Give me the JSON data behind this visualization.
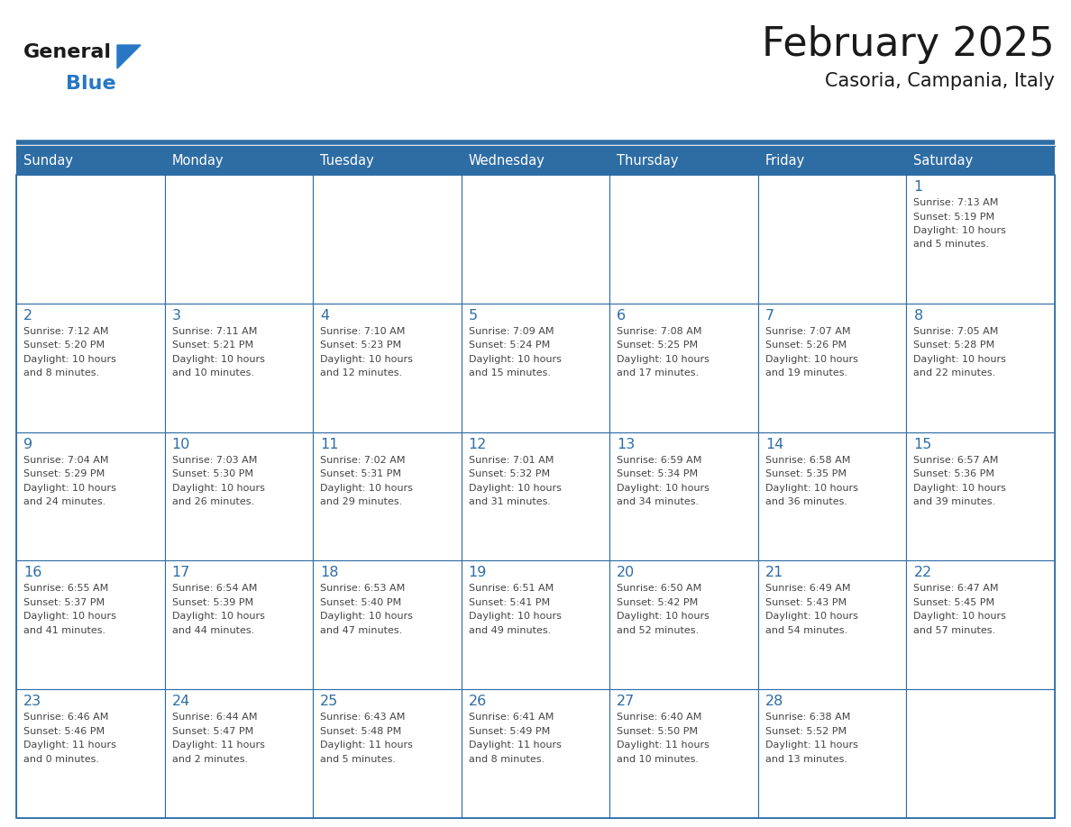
{
  "title": "February 2025",
  "subtitle": "Casoria, Campania, Italy",
  "header_bg": "#2E6DA4",
  "header_text": "#FFFFFF",
  "cell_bg": "#FFFFFF",
  "grid_line_color": "#2E6DA4",
  "text_color": "#444444",
  "day_number_color": "#2E6DA4",
  "days_of_week": [
    "Sunday",
    "Monday",
    "Tuesday",
    "Wednesday",
    "Thursday",
    "Friday",
    "Saturday"
  ],
  "calendar_data": [
    [
      null,
      null,
      null,
      null,
      null,
      null,
      {
        "day": "1",
        "sunrise": "7:13 AM",
        "sunset": "5:19 PM",
        "daylight": "10 hours",
        "daylight2": "and 5 minutes."
      }
    ],
    [
      {
        "day": "2",
        "sunrise": "7:12 AM",
        "sunset": "5:20 PM",
        "daylight": "10 hours",
        "daylight2": "and 8 minutes."
      },
      {
        "day": "3",
        "sunrise": "7:11 AM",
        "sunset": "5:21 PM",
        "daylight": "10 hours",
        "daylight2": "and 10 minutes."
      },
      {
        "day": "4",
        "sunrise": "7:10 AM",
        "sunset": "5:23 PM",
        "daylight": "10 hours",
        "daylight2": "and 12 minutes."
      },
      {
        "day": "5",
        "sunrise": "7:09 AM",
        "sunset": "5:24 PM",
        "daylight": "10 hours",
        "daylight2": "and 15 minutes."
      },
      {
        "day": "6",
        "sunrise": "7:08 AM",
        "sunset": "5:25 PM",
        "daylight": "10 hours",
        "daylight2": "and 17 minutes."
      },
      {
        "day": "7",
        "sunrise": "7:07 AM",
        "sunset": "5:26 PM",
        "daylight": "10 hours",
        "daylight2": "and 19 minutes."
      },
      {
        "day": "8",
        "sunrise": "7:05 AM",
        "sunset": "5:28 PM",
        "daylight": "10 hours",
        "daylight2": "and 22 minutes."
      }
    ],
    [
      {
        "day": "9",
        "sunrise": "7:04 AM",
        "sunset": "5:29 PM",
        "daylight": "10 hours",
        "daylight2": "and 24 minutes."
      },
      {
        "day": "10",
        "sunrise": "7:03 AM",
        "sunset": "5:30 PM",
        "daylight": "10 hours",
        "daylight2": "and 26 minutes."
      },
      {
        "day": "11",
        "sunrise": "7:02 AM",
        "sunset": "5:31 PM",
        "daylight": "10 hours",
        "daylight2": "and 29 minutes."
      },
      {
        "day": "12",
        "sunrise": "7:01 AM",
        "sunset": "5:32 PM",
        "daylight": "10 hours",
        "daylight2": "and 31 minutes."
      },
      {
        "day": "13",
        "sunrise": "6:59 AM",
        "sunset": "5:34 PM",
        "daylight": "10 hours",
        "daylight2": "and 34 minutes."
      },
      {
        "day": "14",
        "sunrise": "6:58 AM",
        "sunset": "5:35 PM",
        "daylight": "10 hours",
        "daylight2": "and 36 minutes."
      },
      {
        "day": "15",
        "sunrise": "6:57 AM",
        "sunset": "5:36 PM",
        "daylight": "10 hours",
        "daylight2": "and 39 minutes."
      }
    ],
    [
      {
        "day": "16",
        "sunrise": "6:55 AM",
        "sunset": "5:37 PM",
        "daylight": "10 hours",
        "daylight2": "and 41 minutes."
      },
      {
        "day": "17",
        "sunrise": "6:54 AM",
        "sunset": "5:39 PM",
        "daylight": "10 hours",
        "daylight2": "and 44 minutes."
      },
      {
        "day": "18",
        "sunrise": "6:53 AM",
        "sunset": "5:40 PM",
        "daylight": "10 hours",
        "daylight2": "and 47 minutes."
      },
      {
        "day": "19",
        "sunrise": "6:51 AM",
        "sunset": "5:41 PM",
        "daylight": "10 hours",
        "daylight2": "and 49 minutes."
      },
      {
        "day": "20",
        "sunrise": "6:50 AM",
        "sunset": "5:42 PM",
        "daylight": "10 hours",
        "daylight2": "and 52 minutes."
      },
      {
        "day": "21",
        "sunrise": "6:49 AM",
        "sunset": "5:43 PM",
        "daylight": "10 hours",
        "daylight2": "and 54 minutes."
      },
      {
        "day": "22",
        "sunrise": "6:47 AM",
        "sunset": "5:45 PM",
        "daylight": "10 hours",
        "daylight2": "and 57 minutes."
      }
    ],
    [
      {
        "day": "23",
        "sunrise": "6:46 AM",
        "sunset": "5:46 PM",
        "daylight": "11 hours",
        "daylight2": "and 0 minutes."
      },
      {
        "day": "24",
        "sunrise": "6:44 AM",
        "sunset": "5:47 PM",
        "daylight": "11 hours",
        "daylight2": "and 2 minutes."
      },
      {
        "day": "25",
        "sunrise": "6:43 AM",
        "sunset": "5:48 PM",
        "daylight": "11 hours",
        "daylight2": "and 5 minutes."
      },
      {
        "day": "26",
        "sunrise": "6:41 AM",
        "sunset": "5:49 PM",
        "daylight": "11 hours",
        "daylight2": "and 8 minutes."
      },
      {
        "day": "27",
        "sunrise": "6:40 AM",
        "sunset": "5:50 PM",
        "daylight": "11 hours",
        "daylight2": "and 10 minutes."
      },
      {
        "day": "28",
        "sunrise": "6:38 AM",
        "sunset": "5:52 PM",
        "daylight": "11 hours",
        "daylight2": "and 13 minutes."
      },
      null
    ]
  ],
  "logo_color_general": "#1a1a1a",
  "logo_color_blue": "#2777C4",
  "logo_triangle_color": "#2777C4",
  "title_color": "#1a1a1a",
  "subtitle_color": "#1a1a1a"
}
